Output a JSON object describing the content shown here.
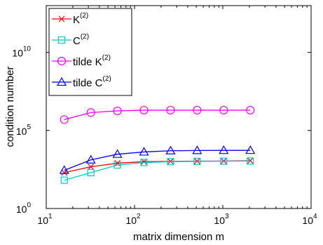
{
  "chart_data": {
    "type": "line",
    "title": "",
    "xlabel": "matrix dimension m",
    "ylabel": "condition number",
    "xscale": "log",
    "yscale": "log",
    "xlim": [
      10,
      10000
    ],
    "ylim": [
      1,
      10000000000000.0
    ],
    "grid": false,
    "legend_position": "top-left",
    "x_ticks": [
      {
        "value": 10,
        "base": "10",
        "exp": "1"
      },
      {
        "value": 100,
        "base": "10",
        "exp": "2"
      },
      {
        "value": 1000,
        "base": "10",
        "exp": "3"
      },
      {
        "value": 10000,
        "base": "10",
        "exp": "4"
      }
    ],
    "y_ticks": [
      {
        "value": 1,
        "base": "10",
        "exp": "0"
      },
      {
        "value": 100000,
        "base": "10",
        "exp": "5"
      },
      {
        "value": 10000000000.0,
        "base": "10",
        "exp": "10"
      }
    ],
    "x": [
      16,
      32,
      64,
      128,
      256,
      512,
      1024,
      2048
    ],
    "series": [
      {
        "name": "K",
        "name_sup": "(2)",
        "color": "#ff0000",
        "marker": "x",
        "values": [
          200,
          470,
          800,
          1000,
          1050,
          1080,
          1100,
          1150
        ]
      },
      {
        "name": "C",
        "name_sup": "(2)",
        "color": "#00cccc",
        "marker": "square",
        "values": [
          65,
          200,
          610,
          880,
          1000,
          1050,
          1070,
          1100
        ]
      },
      {
        "name": "tilde K",
        "name_sup": "(2)",
        "color": "#ff00ff",
        "marker": "circle",
        "values": [
          500000,
          1400000,
          1800000,
          2000000,
          2000000,
          2000000,
          2000000,
          2000000
        ]
      },
      {
        "name": "tilde C",
        "name_sup": "(2)",
        "color": "#0000ff",
        "marker": "triangle",
        "values": [
          280,
          1300,
          3000,
          4200,
          5000,
          5200,
          5300,
          5300
        ]
      }
    ]
  }
}
